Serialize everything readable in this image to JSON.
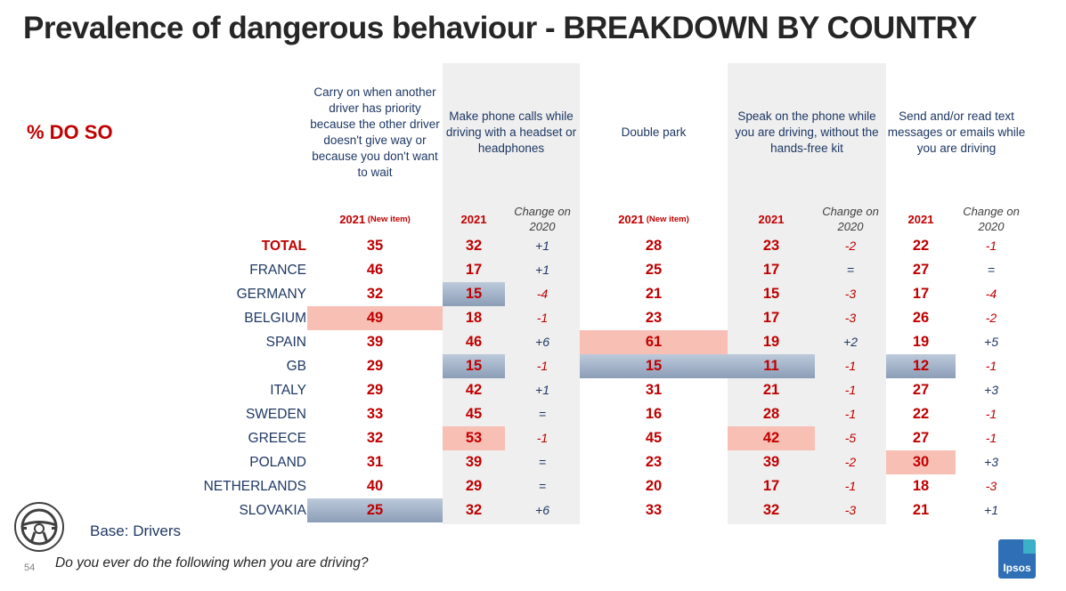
{
  "title": "Prevalence of dangerous behaviour - BREAKDOWN BY COUNTRY",
  "measure_label": "% DO SO",
  "base_label": "Base: Drivers",
  "question": "Do you ever do the following when you are driving?",
  "page_number": "54",
  "logo_text": "Ipsos",
  "icon": "steering-wheel-icon",
  "colors": {
    "red": "#c00000",
    "navy": "#1f3864",
    "high_highlight": "#f8bfb5",
    "low_highlight": "#9aabc3",
    "band": "#efefef"
  },
  "chart_data": {
    "type": "table",
    "row_labels": [
      "TOTAL",
      "FRANCE",
      "GERMANY",
      "BELGIUM",
      "SPAIN",
      "GB",
      "ITALY",
      "SWEDEN",
      "GREECE",
      "POLAND",
      "NETHERLANDS",
      "SLOVAKIA"
    ],
    "behaviours": [
      {
        "label": "Carry on when another driver has priority because the other driver doesn't give way or because you don't want to wait",
        "year_label": "2021",
        "year_note": "(New item)",
        "change_label": "",
        "values": [
          "35",
          "46",
          "32",
          "49",
          "39",
          "29",
          "29",
          "33",
          "32",
          "31",
          "40",
          "25"
        ],
        "changes": [],
        "highlight_high": [
          3
        ],
        "highlight_low": [
          11
        ]
      },
      {
        "label": "Make phone calls while driving with a headset or headphones",
        "year_label": "2021",
        "year_note": "",
        "change_label": "Change on 2020",
        "values": [
          "32",
          "17",
          "15",
          "18",
          "46",
          "15",
          "42",
          "45",
          "53",
          "39",
          "29",
          "32"
        ],
        "changes": [
          "+1",
          "+1",
          "-4",
          "-1",
          "+6",
          "-1",
          "+1",
          "=",
          "-1",
          "=",
          "=",
          "+6"
        ],
        "highlight_high": [
          8
        ],
        "highlight_low": [
          2,
          5
        ]
      },
      {
        "label": "Double park",
        "year_label": "2021",
        "year_note": "(New item)",
        "change_label": "",
        "values": [
          "28",
          "25",
          "21",
          "23",
          "61",
          "15",
          "31",
          "16",
          "45",
          "23",
          "20",
          "33"
        ],
        "changes": [],
        "highlight_high": [
          4
        ],
        "highlight_low": [
          5
        ]
      },
      {
        "label": "Speak on the phone while you are driving, without the hands-free kit",
        "year_label": "2021",
        "year_note": "",
        "change_label": "Change on 2020",
        "values": [
          "23",
          "17",
          "15",
          "17",
          "19",
          "11",
          "21",
          "28",
          "42",
          "39",
          "17",
          "32"
        ],
        "changes": [
          "-2",
          "=",
          "-3",
          "-3",
          "+2",
          "-1",
          "-1",
          "-1",
          "-5",
          "-2",
          "-1",
          "-3"
        ],
        "highlight_high": [
          8
        ],
        "highlight_low": [
          5
        ]
      },
      {
        "label": "Send and/or read text messages or emails while you are driving",
        "year_label": "2021",
        "year_note": "",
        "change_label": "Change on 2020",
        "values": [
          "22",
          "27",
          "17",
          "26",
          "19",
          "12",
          "27",
          "22",
          "27",
          "30",
          "18",
          "21"
        ],
        "changes": [
          "-1",
          "=",
          "-4",
          "-2",
          "+5",
          "-1",
          "+3",
          "-1",
          "-1",
          "+3",
          "-3",
          "+1"
        ],
        "highlight_high": [
          9
        ],
        "highlight_low": [
          5
        ]
      }
    ]
  }
}
